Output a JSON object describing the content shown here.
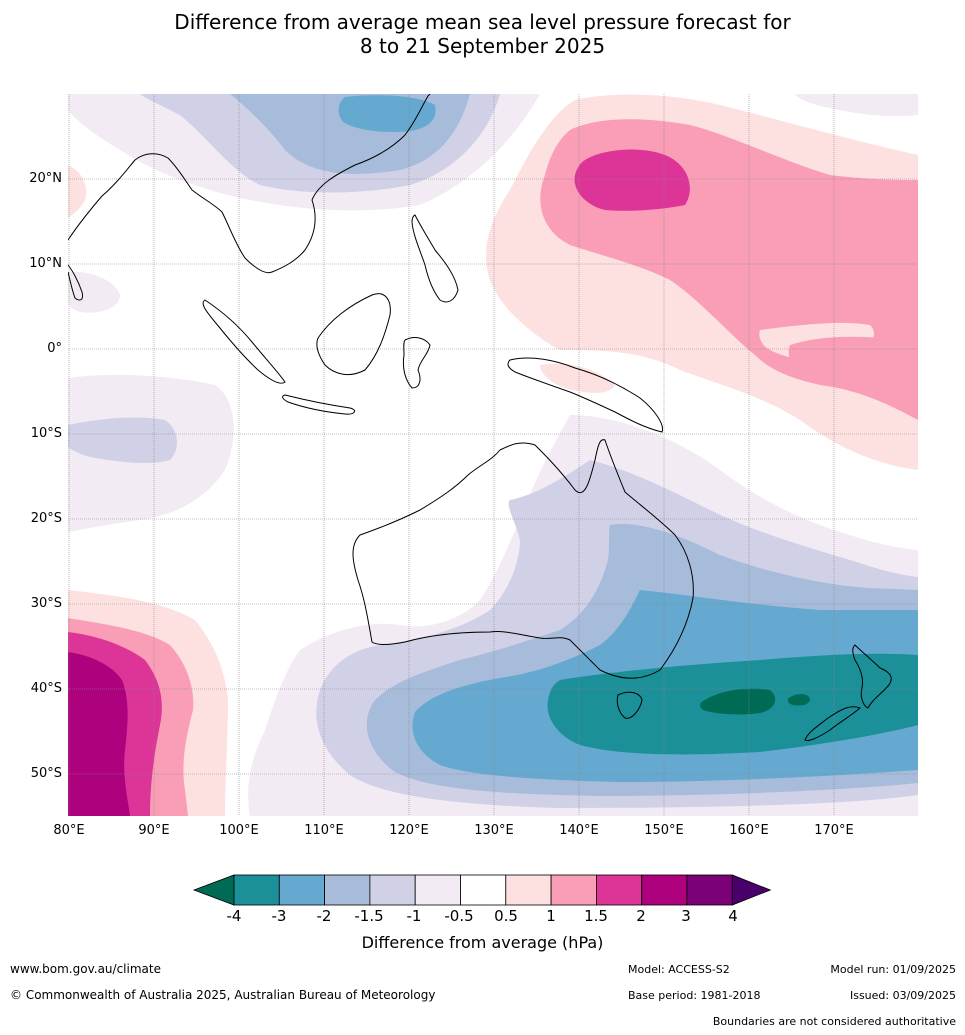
{
  "title": {
    "line1": "Difference from average mean sea level pressure forecast for",
    "line2": "8 to 21 September 2025"
  },
  "axes": {
    "lat_labels": [
      "20°N",
      "10°N",
      "0°",
      "10°S",
      "20°S",
      "30°S",
      "40°S",
      "50°S"
    ],
    "lon_labels": [
      "80°E",
      "90°E",
      "100°E",
      "110°E",
      "120°E",
      "130°E",
      "140°E",
      "150°E",
      "160°E",
      "170°E"
    ]
  },
  "colorbar": {
    "ticks": [
      "-4",
      "-3",
      "-2",
      "-1.5",
      "-1",
      "-0.5",
      "0.5",
      "1",
      "1.5",
      "2",
      "3",
      "4"
    ],
    "colors": [
      "#006b54",
      "#1b9099",
      "#66a9d0",
      "#a7bcda",
      "#d0d0e6",
      "#f2ebf4",
      "#ffffff",
      "#fde0e0",
      "#f99eb6",
      "#dd3497",
      "#ae017e",
      "#7a0177",
      "#49006a"
    ],
    "label": "Difference from average (hPa)"
  },
  "footer": {
    "url": "www.bom.gov.au/climate",
    "copyright": "© Commonwealth of Australia 2025, Australian Bureau of Meteorology",
    "model": "Model: ACCESS-S2",
    "base_period": "Base period: 1981-2018",
    "model_run": "Model run: 01/09/2025",
    "issued": "Issued: 03/09/2025",
    "disclaimer": "Boundaries are not considered authoritative"
  }
}
